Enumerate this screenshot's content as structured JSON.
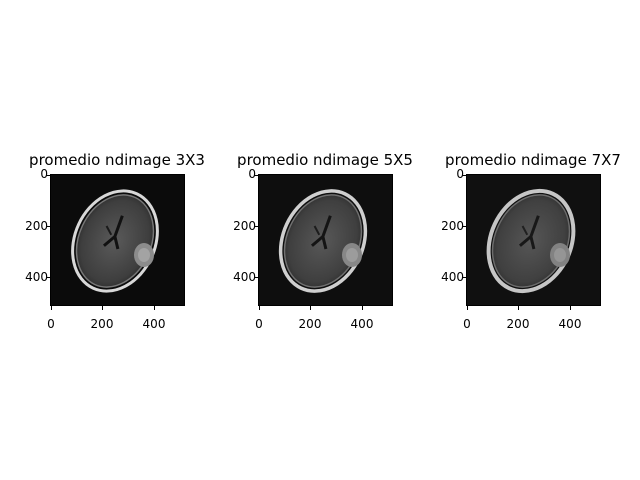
{
  "panels": [
    {
      "title": "promedio ndimage 3X3",
      "yticks": [
        "0",
        "200",
        "400"
      ],
      "xticks": [
        "0",
        "200",
        "400"
      ]
    },
    {
      "title": "promedio ndimage 5X5",
      "yticks": [
        "0",
        "200",
        "400"
      ],
      "xticks": [
        "0",
        "200",
        "400"
      ]
    },
    {
      "title": "promedio ndimage 7X7",
      "yticks": [
        "0",
        "200",
        "400"
      ],
      "xticks": [
        "0",
        "200",
        "400"
      ]
    }
  ]
}
